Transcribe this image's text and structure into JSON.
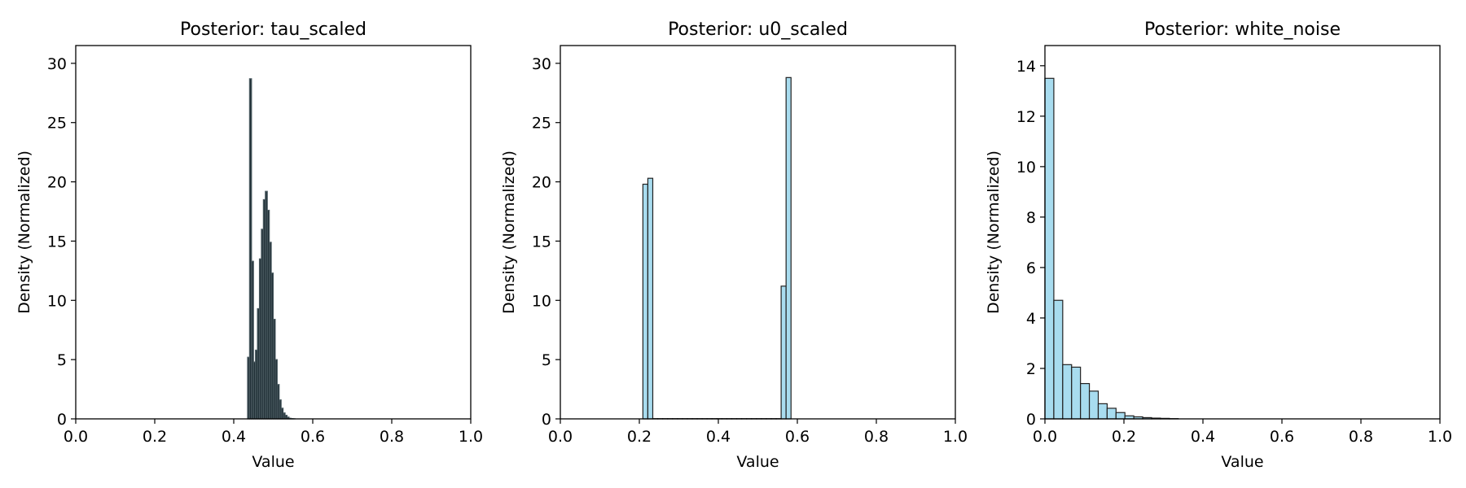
{
  "chart_data": [
    {
      "type": "bar",
      "title": "Posterior: tau_scaled",
      "xlabel": "Value",
      "ylabel": "Density (Normalized)",
      "xlim": [
        0,
        1
      ],
      "ylim": [
        0,
        31.5
      ],
      "xticks": [
        "0.0",
        "0.2",
        "0.4",
        "0.6",
        "0.8",
        "1.0"
      ],
      "yticks": [
        "0",
        "5",
        "10",
        "15",
        "20",
        "25",
        "30"
      ],
      "bar_color": "#1f2e35",
      "bar_edge": "#4a5a60",
      "bin_edges": [
        0.435,
        0.44,
        0.445,
        0.45,
        0.455,
        0.46,
        0.465,
        0.47,
        0.475,
        0.48,
        0.485,
        0.49,
        0.495,
        0.5,
        0.505,
        0.51,
        0.515,
        0.52,
        0.525,
        0.53,
        0.535,
        0.54,
        0.545,
        0.55,
        0.555
      ],
      "values": [
        5.2,
        28.7,
        13.3,
        4.8,
        5.8,
        9.3,
        13.5,
        16.0,
        18.5,
        19.2,
        17.6,
        14.9,
        12.3,
        8.4,
        5.0,
        2.9,
        1.6,
        0.9,
        0.5,
        0.3,
        0.15,
        0.05,
        0.02,
        0.01
      ]
    },
    {
      "type": "bar",
      "title": "Posterior: u0_scaled",
      "xlabel": "Value",
      "ylabel": "Density (Normalized)",
      "xlim": [
        0,
        1
      ],
      "ylim": [
        0,
        31.5
      ],
      "xticks": [
        "0.0",
        "0.2",
        "0.4",
        "0.6",
        "0.8",
        "1.0"
      ],
      "yticks": [
        "0",
        "5",
        "10",
        "15",
        "20",
        "25",
        "30"
      ],
      "bar_color": "#a8dcef",
      "bar_edge": "#222222",
      "bin_edges": [
        0.209,
        0.2215,
        0.234,
        0.2465,
        0.259,
        0.2715,
        0.284,
        0.2965,
        0.309,
        0.3215,
        0.334,
        0.3465,
        0.359,
        0.3715,
        0.384,
        0.3965,
        0.409,
        0.4215,
        0.434,
        0.4465,
        0.459,
        0.4715,
        0.484,
        0.4965,
        0.509,
        0.5215,
        0.534,
        0.5465,
        0.559,
        0.5715,
        0.584
      ],
      "values": [
        19.8,
        20.3,
        0.02,
        0.02,
        0.02,
        0.02,
        0.02,
        0.02,
        0.02,
        0.02,
        0.02,
        0.02,
        0.02,
        0.02,
        0.02,
        0.02,
        0.02,
        0.02,
        0.02,
        0.02,
        0.02,
        0.02,
        0.02,
        0.02,
        0.02,
        0.02,
        0.02,
        0.02,
        11.2,
        28.8
      ]
    },
    {
      "type": "bar",
      "title": "Posterior: white_noise",
      "xlabel": "Value",
      "ylabel": "Density (Normalized)",
      "xlim": [
        0,
        1
      ],
      "ylim": [
        0,
        14.8
      ],
      "xticks": [
        "0.0",
        "0.2",
        "0.4",
        "0.6",
        "0.8",
        "1.0"
      ],
      "yticks": [
        "0",
        "2",
        "4",
        "6",
        "8",
        "10",
        "12",
        "14"
      ],
      "bar_color": "#a8dcef",
      "bar_edge": "#222222",
      "bin_edges": [
        0.0,
        0.0225,
        0.045,
        0.0675,
        0.09,
        0.1125,
        0.135,
        0.1575,
        0.18,
        0.2025,
        0.225,
        0.2475,
        0.27,
        0.2925,
        0.315,
        0.3375
      ],
      "values": [
        13.5,
        4.7,
        2.15,
        2.05,
        1.4,
        1.1,
        0.6,
        0.42,
        0.25,
        0.12,
        0.08,
        0.05,
        0.03,
        0.02,
        0.01
      ]
    }
  ]
}
